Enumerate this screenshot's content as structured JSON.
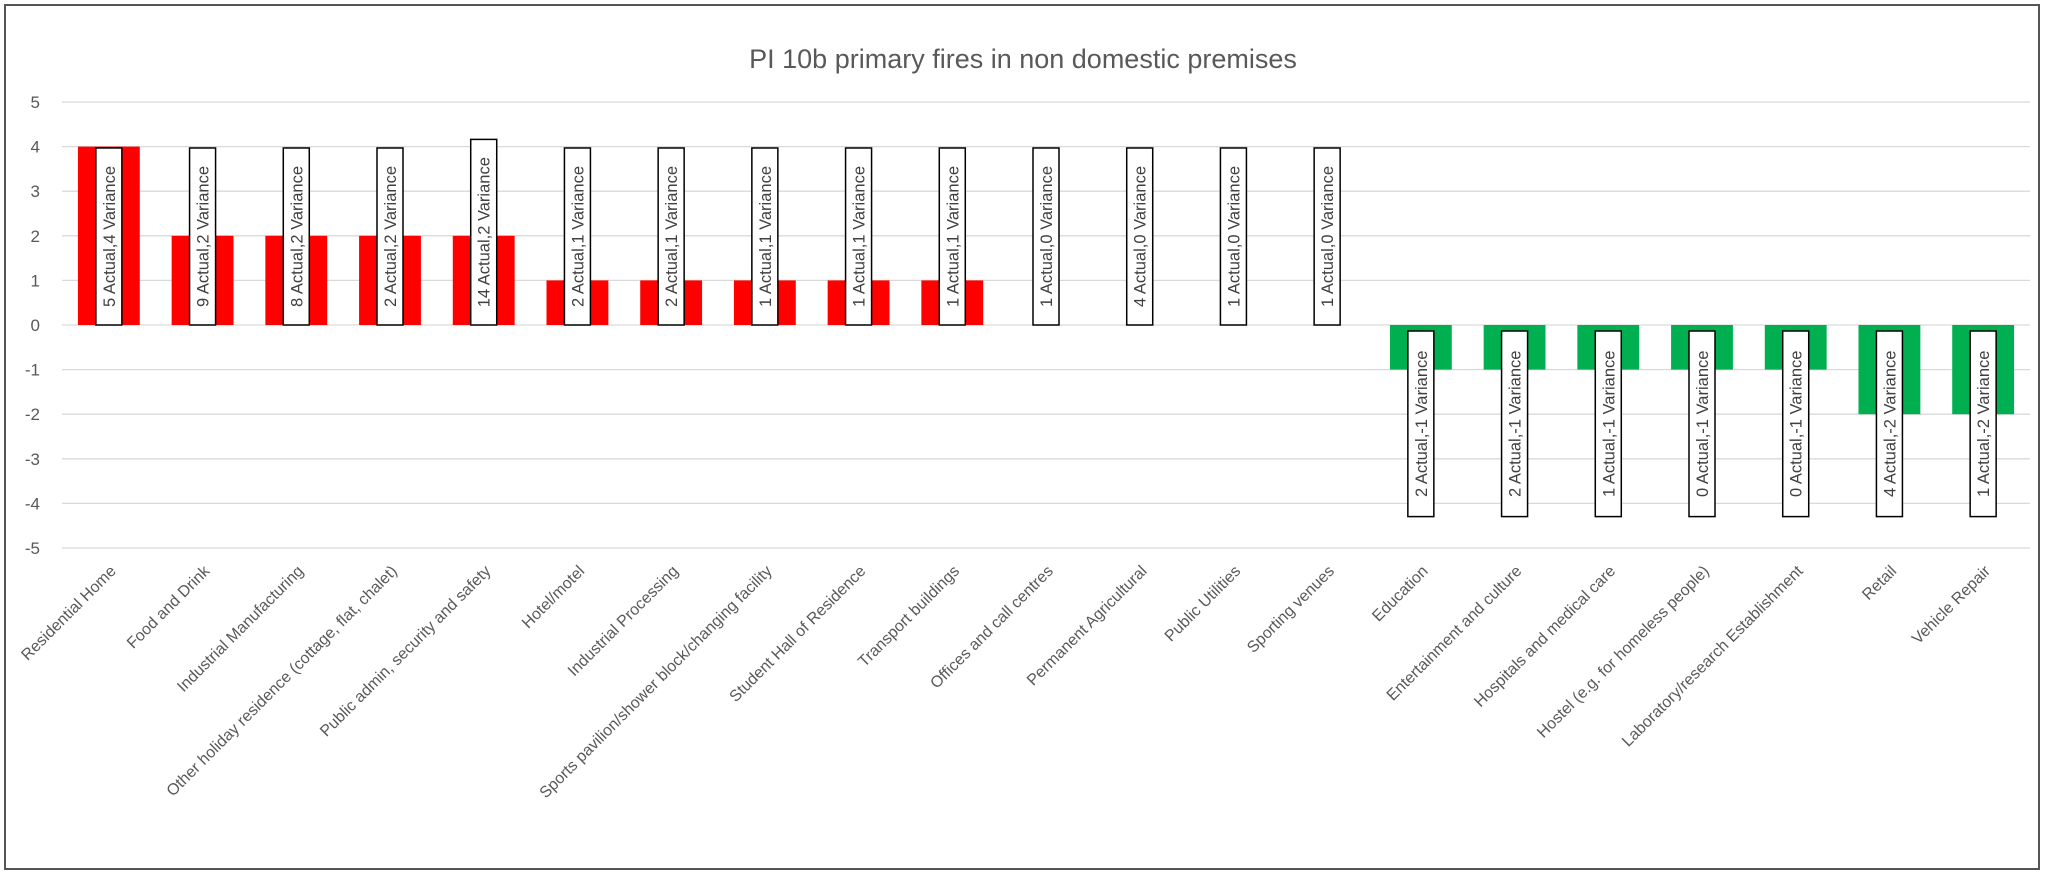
{
  "chart_data": {
    "type": "bar",
    "title": "PI 10b primary fires in non domestic premises",
    "xlabel": "",
    "ylabel": "",
    "ylim": [
      -5,
      5
    ],
    "yticks": [
      5,
      4,
      3,
      2,
      1,
      0,
      -1,
      -2,
      -3,
      -4,
      -5
    ],
    "grid": true,
    "legend": "none",
    "colors": {
      "positive": "#ff0000",
      "negative": "#00b050",
      "gridline": "#d9d9d9",
      "text": "#595959"
    },
    "categories": [
      "Residential Home",
      "Food and Drink",
      "Industrial Manufacturing",
      "Other holiday residence (cottage, flat, chalet)",
      "Public admin, security and safety",
      "Hotel/motel",
      "Industrial Processing",
      "Sports pavilion/shower block/changing facility",
      "Student Hall of Residence",
      "Transport buildings",
      "Offices and call centres",
      "Permanent Agricultural",
      "Public Utilities",
      "Sporting venues",
      "Education",
      "Entertainment and culture",
      "Hospitals and medical care",
      "Hostel (e.g. for homeless people)",
      "Laboratory/research Establishment",
      "Retail",
      "Vehicle Repair"
    ],
    "values": [
      4,
      2,
      2,
      2,
      2,
      1,
      1,
      1,
      1,
      1,
      0,
      0,
      0,
      0,
      -1,
      -1,
      -1,
      -1,
      -1,
      -2,
      -2
    ],
    "data_labels": [
      "5 Actual,4 Variance",
      "9 Actual,2 Variance",
      "8 Actual,2 Variance",
      "2 Actual,2 Variance",
      "14 Actual,2 Variance",
      "2 Actual,1 Variance",
      "2 Actual,1 Variance",
      "1 Actual,1 Variance",
      "1 Actual,1 Variance",
      "1 Actual,1 Variance",
      "1 Actual,0 Variance",
      "4 Actual,0 Variance",
      "1 Actual,0 Variance",
      "1 Actual,0 Variance",
      "2 Actual,-1 Variance",
      "2 Actual,-1 Variance",
      "1 Actual,-1 Variance",
      "0 Actual,-1 Variance",
      "0 Actual,-1 Variance",
      "4 Actual,-2 Variance",
      "1 Actual,-2 Variance"
    ]
  }
}
